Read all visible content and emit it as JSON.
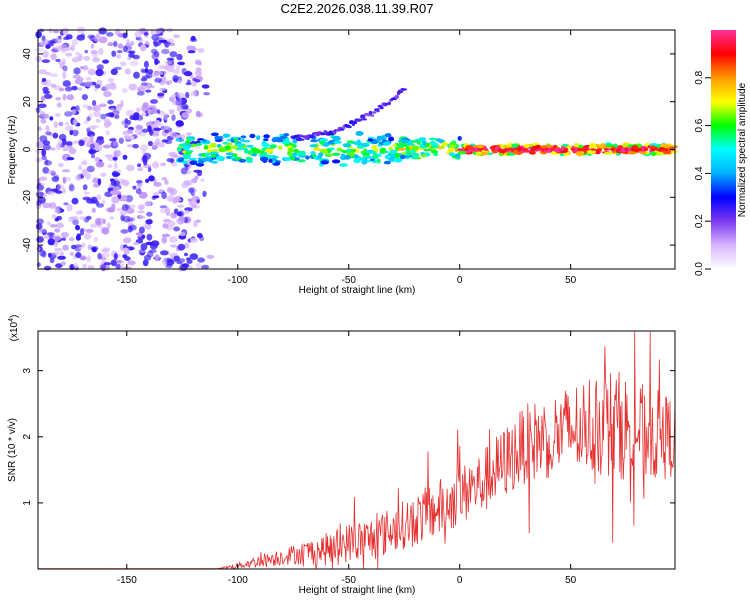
{
  "title": "C2E2.2026.038.11.39.R07",
  "chart_data": [
    {
      "type": "heatmap",
      "name": "spectrogram",
      "xlabel": "Height of straight line (km)",
      "ylabel": "Frequency (Hz)",
      "xlim": [
        -190,
        97
      ],
      "ylim": [
        -50,
        50
      ],
      "xticks": [
        -150,
        -100,
        -50,
        0,
        50
      ],
      "xtick_labels": [
        "-150",
        "-100",
        "-50",
        "0",
        "50"
      ],
      "yticks": [
        -40,
        -20,
        0,
        20,
        40
      ],
      "ytick_labels": [
        "-40",
        "-20",
        "0",
        "20",
        "40"
      ],
      "colorbar": {
        "label": "Normalized spectral amplitude",
        "range": [
          0,
          1
        ],
        "ticks": [
          0,
          0.2,
          0.4,
          0.6,
          0.8
        ],
        "tick_labels": [
          "0.0",
          "0.2",
          "0.4",
          "0.6",
          "0.8"
        ],
        "colors": [
          "#ffffff",
          "#d8b4fe",
          "#7c3aed",
          "#0000ff",
          "#00b0ff",
          "#00ffff",
          "#00ff00",
          "#ffff00",
          "#ff9900",
          "#ff0000",
          "#ff3399"
        ]
      },
      "features": {
        "noise_region_x": [
          -190,
          -112
        ],
        "trace_start_x": -127,
        "main_trace_freq": 0,
        "secondary_curve": {
          "x_start": -75,
          "x_end": -25,
          "freq_start": 5,
          "freq_end": 25
        }
      }
    },
    {
      "type": "line",
      "name": "snr",
      "xlabel": "Height of straight line (km)",
      "ylabel": "SNR (10 * v/v)",
      "y_scale_label": "(x10",
      "y_scale_exp": "4",
      "xlim": [
        -190,
        97
      ],
      "ylim": [
        0,
        3.6
      ],
      "xticks": [
        -150,
        -100,
        -50,
        0,
        50
      ],
      "xtick_labels": [
        "-150",
        "-100",
        "-50",
        "0",
        "50"
      ],
      "yticks": [
        1,
        2,
        3
      ],
      "ytick_labels": [
        "1",
        "2",
        "3"
      ],
      "color": "#e53030",
      "envelope": {
        "x": [
          -190,
          -110,
          -100,
          -90,
          -75,
          -60,
          -50,
          -40,
          -30,
          -20,
          -10,
          0,
          10,
          20,
          30,
          40,
          50,
          60,
          70,
          80,
          90,
          97
        ],
        "mean": [
          0,
          0,
          0.05,
          0.12,
          0.22,
          0.3,
          0.4,
          0.45,
          0.6,
          0.75,
          0.9,
          1.1,
          1.3,
          1.6,
          1.9,
          2.0,
          2.1,
          2.2,
          2.2,
          2.1,
          2.0,
          2.0
        ],
        "spread": [
          0,
          0,
          0.05,
          0.1,
          0.15,
          0.25,
          0.3,
          0.35,
          0.35,
          0.4,
          0.45,
          0.45,
          0.5,
          0.55,
          0.6,
          0.65,
          0.7,
          0.8,
          0.85,
          0.75,
          0.7,
          0.6
        ]
      }
    }
  ]
}
